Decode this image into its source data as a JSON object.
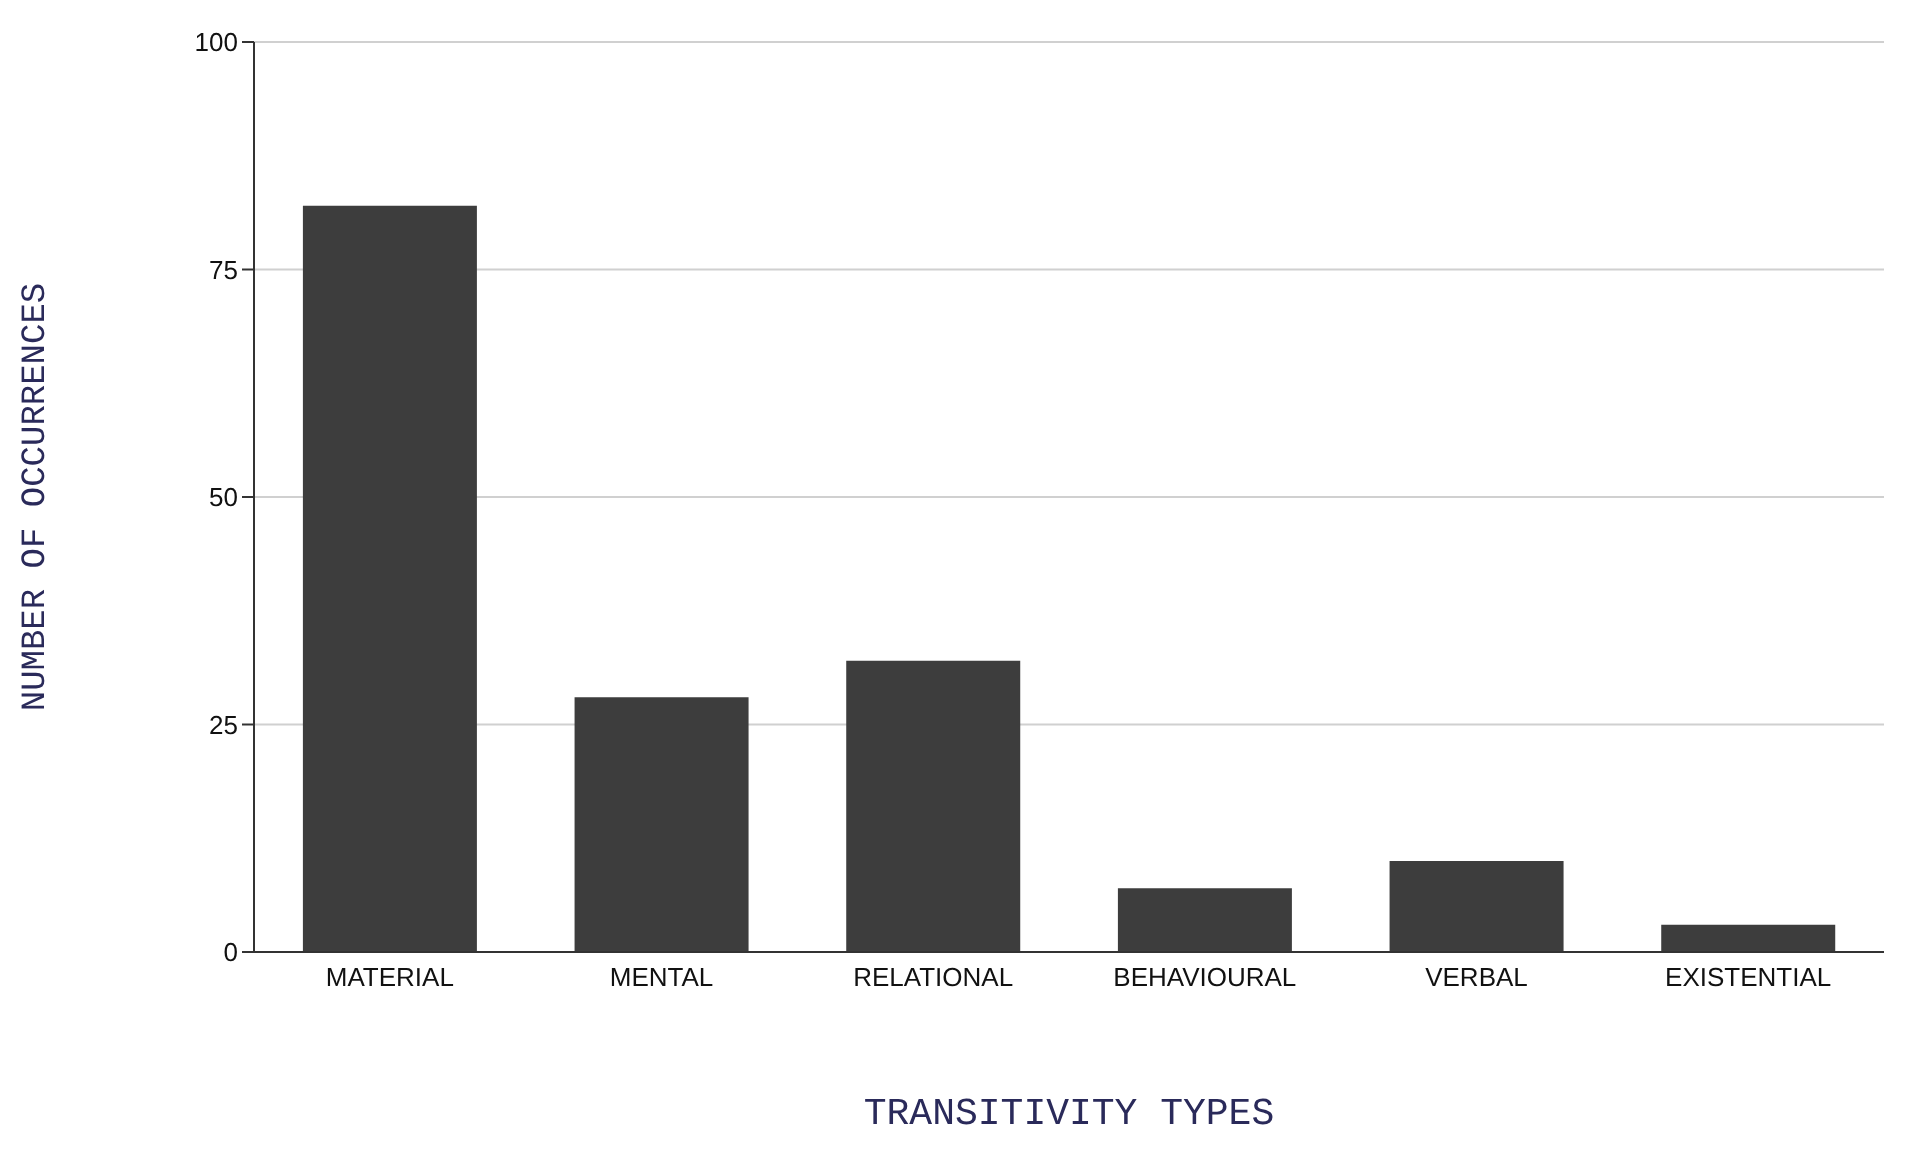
{
  "chart_data": {
    "type": "bar",
    "xlabel": "TRANSITIVITY TYPES",
    "ylabel": "NUMBER OF OCCURRENCES",
    "categories": [
      "MATERIAL",
      "MENTAL",
      "RELATIONAL",
      "BEHAVIOURAL",
      "VERBAL",
      "EXISTENTIAL"
    ],
    "values": [
      82,
      28,
      32,
      7,
      10,
      3
    ],
    "color": "#3d3d3d",
    "ylim": [
      0,
      100
    ],
    "yticks": [
      0,
      25,
      50,
      75,
      100
    ],
    "grid": "y"
  }
}
